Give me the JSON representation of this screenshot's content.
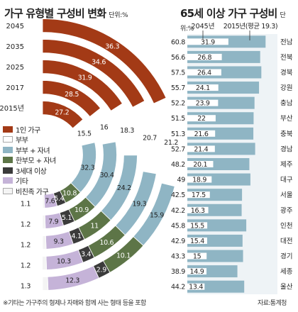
{
  "left_title": "가구 유형별 구성비 변화",
  "left_unit": "단위:%",
  "right_title": "65세 이상 가구 구성비",
  "right_unit": "단위:%",
  "footnote": "※기타는 가구주의 형제나 자매와 함께 사는 형태 등을 포함",
  "source": "자료:통계청",
  "chart_data": [
    {
      "type": "bar",
      "title": "가구 유형별 구성비 변화",
      "unit": "단위:%",
      "categories": [
        "2045",
        "2035",
        "2025",
        "2017",
        "2015년"
      ],
      "series": [
        {
          "name": "1인 가구",
          "color": "#a33a16",
          "values": [
            36.3,
            34.6,
            31.9,
            28.5,
            27.2
          ]
        },
        {
          "name": "부부",
          "color": "#ffffff",
          "values": [
            21.2,
            20.7,
            18.3,
            16.0,
            15.5
          ]
        },
        {
          "name": "부부 + 자녀",
          "color": "#8fb5c4",
          "values": [
            15.9,
            19.3,
            24.2,
            30.4,
            32.3
          ]
        },
        {
          "name": "한부모 + 자녀",
          "color": "#5d7547",
          "values": [
            10.1,
            10.6,
            11.0,
            10.9,
            10.8
          ]
        },
        {
          "name": "3세대 이상",
          "color": "#3b3b3b",
          "values": [
            2.9,
            3.4,
            4.1,
            5.1,
            5.4
          ]
        },
        {
          "name": "기타",
          "color": "#c5b3d8",
          "values": [
            12.3,
            10.3,
            9.3,
            7.9,
            7.6
          ]
        },
        {
          "name": "비친족 가구",
          "color": "#f4f4f4",
          "values": [
            1.3,
            1.2,
            1.2,
            1.2,
            1.1
          ]
        }
      ]
    },
    {
      "type": "bar",
      "title": "65세 이상 가구 구성비",
      "unit": "단위:%",
      "categories": [
        "전남",
        "전북",
        "경북",
        "강원",
        "충남",
        "부산",
        "충북",
        "경남",
        "제주",
        "대구",
        "서울",
        "광주",
        "인천",
        "대전",
        "경기",
        "세종",
        "울산"
      ],
      "series": [
        {
          "name": "2045년",
          "color": "#8fb5c4",
          "values": [
            60.8,
            56.6,
            57.5,
            55.7,
            52.2,
            51.5,
            51.3,
            52.7,
            48.2,
            49.0,
            42.5,
            42.2,
            45.8,
            42.9,
            43.3,
            38.9,
            44.2
          ]
        },
        {
          "name": "2015년(평균 19.3)",
          "color": "#ffffff",
          "values": [
            31.9,
            26.8,
            26.4,
            24.1,
            23.9,
            22.0,
            21.6,
            21.4,
            20.1,
            18.9,
            17.5,
            16.3,
            15.5,
            15.4,
            15.0,
            14.9,
            13.4
          ]
        }
      ],
      "xlim": [
        0,
        70
      ]
    }
  ]
}
